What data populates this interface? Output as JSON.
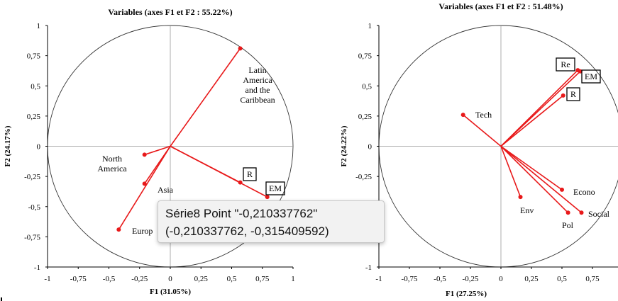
{
  "chart_data": [
    {
      "type": "scatter",
      "title": "Variables (axes F1 et F2 : 55.22%)",
      "xlabel": "F1 (31.05%)",
      "ylabel": "F2 (24.17%)",
      "xlim": [
        -1,
        1
      ],
      "ylim": [
        -1,
        1
      ],
      "xticks": [
        "-1",
        "-0,75",
        "-0,5",
        "-0,25",
        "0",
        "0,25",
        "0,5",
        "0,75",
        "1"
      ],
      "yticks": [
        "1",
        "0,75",
        "0,5",
        "0,25",
        "0",
        "-0,25",
        "-0,5",
        "-0,75",
        "-1"
      ],
      "grid": false,
      "circle": true,
      "points": [
        {
          "label": "Latin America and the Caribbean",
          "x": 0.57,
          "y": 0.81,
          "boxed": false
        },
        {
          "label": "North America",
          "x": -0.21,
          "y": -0.07,
          "boxed": false
        },
        {
          "label": "Asia",
          "x": -0.21,
          "y": -0.31,
          "boxed": false
        },
        {
          "label": "Europ",
          "x": -0.42,
          "y": -0.69,
          "boxed": false
        },
        {
          "label": "R",
          "x": 0.57,
          "y": -0.3,
          "boxed": true
        },
        {
          "label": "EM",
          "x": 0.79,
          "y": -0.42,
          "boxed": true
        }
      ]
    },
    {
      "type": "scatter",
      "title": "Variables (axes F1 et F2 : 51.48%)",
      "xlabel": "F1 (27.25%)",
      "ylabel": "F2 (24.22%)",
      "xlim": [
        -1,
        1
      ],
      "ylim": [
        -1,
        1
      ],
      "xticks": [
        "-1",
        "-0,75",
        "-0,5",
        "-0,25",
        "0",
        "0,25",
        "0,5",
        "0,75"
      ],
      "yticks": [
        "1",
        "0,75",
        "0,5",
        "0,25",
        "0",
        "-0,25",
        "-0,5",
        "-0,75",
        "-1"
      ],
      "grid": false,
      "circle": true,
      "points": [
        {
          "label": "Re",
          "x": 0.63,
          "y": 0.63,
          "boxed": true
        },
        {
          "label": "EM",
          "x": 0.65,
          "y": 0.62,
          "boxed": true
        },
        {
          "label": "R",
          "x": 0.51,
          "y": 0.42,
          "boxed": true
        },
        {
          "label": "Tech",
          "x": -0.31,
          "y": 0.26,
          "boxed": false
        },
        {
          "label": "Econo",
          "x": 0.5,
          "y": -0.36,
          "boxed": false
        },
        {
          "label": "Env",
          "x": 0.16,
          "y": -0.42,
          "boxed": false
        },
        {
          "label": "Pol",
          "x": 0.55,
          "y": -0.55,
          "boxed": false
        },
        {
          "label": "Social",
          "x": 0.66,
          "y": -0.55,
          "boxed": false
        }
      ]
    }
  ],
  "tooltip": {
    "line1": "Série8 Point \"-0,210337762\"",
    "line2": "(-0,210337762, -0,315409592)"
  },
  "colors": {
    "vector": "#e8191a",
    "axis": "#000000",
    "circle": "#333333"
  }
}
